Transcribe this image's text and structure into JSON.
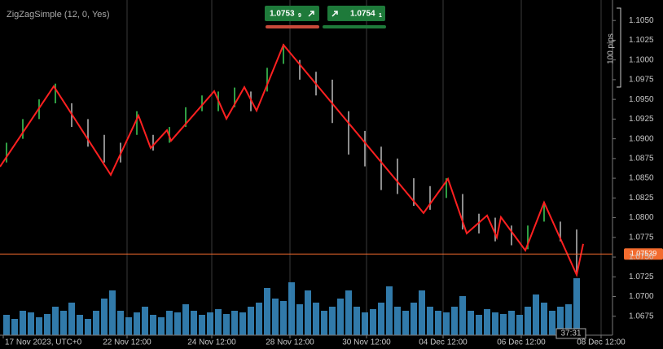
{
  "chart_data": {
    "type": "range-bars",
    "indicator": "ZigZagSimple (12, 0, Yes)",
    "xlim": [
      0,
      376
    ],
    "ylim": [
      1.0651,
      1.1076
    ],
    "xticks": [
      {
        "value": 2,
        "label": "17 Nov 2023, UTC+0"
      },
      {
        "value": 78,
        "label": "22 Nov 12:00"
      },
      {
        "value": 130,
        "label": "24 Nov 12:00"
      },
      {
        "value": 178,
        "label": "28 Nov 12:00"
      },
      {
        "value": 225,
        "label": "30 Nov 12:00"
      },
      {
        "value": 272,
        "label": "04 Dec 12:00"
      },
      {
        "value": 320,
        "label": "06 Dec 12:00"
      },
      {
        "value": 369,
        "label": "08 Dec 12:00"
      }
    ],
    "yticks": [
      {
        "value": 1.105,
        "label": "1.1050"
      },
      {
        "value": 1.1025,
        "label": "1.1025"
      },
      {
        "value": 1.1,
        "label": "1.1000"
      },
      {
        "value": 1.0975,
        "label": "1.0975"
      },
      {
        "value": 1.095,
        "label": "1.0950"
      },
      {
        "value": 1.0925,
        "label": "1.0925"
      },
      {
        "value": 1.09,
        "label": "1.0900"
      },
      {
        "value": 1.0875,
        "label": "1.0875"
      },
      {
        "value": 1.085,
        "label": "1.0850"
      },
      {
        "value": 1.0825,
        "label": "1.0825"
      },
      {
        "value": 1.08,
        "label": "1.0800"
      },
      {
        "value": 1.0775,
        "label": "1.0775"
      },
      {
        "value": 1.075,
        "label": "1.0750"
      },
      {
        "value": 1.0725,
        "label": "1.0725"
      },
      {
        "value": 1.07,
        "label": "1.0700"
      },
      {
        "value": 1.0675,
        "label": "1.0675"
      }
    ],
    "grid": true,
    "bars": {
      "x": [
        4,
        14,
        24,
        34,
        44,
        54,
        64,
        74,
        84,
        94,
        104,
        114,
        124,
        134,
        144,
        154,
        164,
        174,
        184,
        194,
        204,
        214,
        224,
        234,
        244,
        254,
        264,
        274,
        284,
        294,
        304,
        314,
        324,
        334,
        344,
        354
      ],
      "high": [
        1.0895,
        1.0925,
        1.095,
        1.097,
        1.0945,
        1.0925,
        1.0905,
        1.0895,
        1.0935,
        1.0905,
        1.0915,
        1.094,
        1.0955,
        1.096,
        1.0965,
        1.096,
        1.099,
        1.102,
        1.1,
        1.0985,
        1.0975,
        1.0935,
        1.091,
        1.089,
        1.0875,
        1.085,
        1.084,
        1.085,
        1.083,
        1.0805,
        1.08,
        1.079,
        1.079,
        1.082,
        1.0795,
        1.0785
      ],
      "low": [
        1.087,
        1.09,
        1.0925,
        1.0945,
        1.0915,
        1.089,
        1.087,
        1.087,
        1.0905,
        1.0885,
        1.0895,
        1.0915,
        1.0935,
        1.0935,
        1.094,
        1.0935,
        1.096,
        1.0995,
        1.0975,
        1.0955,
        1.092,
        1.088,
        1.0865,
        1.0835,
        1.083,
        1.0815,
        1.081,
        1.0825,
        1.0785,
        1.078,
        1.077,
        1.0765,
        1.076,
        1.0795,
        1.077,
        1.073
      ],
      "up_color": "#2f9e44",
      "down_color": "#8c8c8c"
    },
    "zigzag": {
      "x": [
        0,
        33,
        68,
        85,
        92.5,
        102.5,
        105,
        131.5,
        139,
        150,
        157.5,
        174,
        260,
        275,
        286.5,
        299,
        305,
        307.5,
        322.5,
        334,
        354,
        358
      ],
      "values": [
        1.08646,
        1.09666,
        1.08543,
        1.09295,
        1.08883,
        1.09109,
        1.08975,
        1.09604,
        1.09254,
        1.09655,
        1.09357,
        1.10191,
        1.08059,
        1.08491,
        1.07801,
        1.08028,
        1.0775,
        1.08007,
        1.07585,
        1.08193,
        1.07276,
        1.07667
      ],
      "color": "#ff2020"
    },
    "volume": {
      "x": [
        4,
        9,
        14,
        19,
        24,
        29,
        34,
        39,
        44,
        49,
        54,
        59,
        64,
        69,
        74,
        79,
        84,
        89,
        94,
        99,
        104,
        109,
        114,
        119,
        124,
        129,
        134,
        139,
        144,
        149,
        154,
        159,
        164,
        169,
        174,
        179,
        184,
        189,
        194,
        199,
        204,
        209,
        214,
        219,
        224,
        229,
        234,
        239,
        244,
        249,
        254,
        259,
        264,
        269,
        274,
        279,
        284,
        289,
        294,
        299,
        304,
        309,
        314,
        319,
        324,
        329,
        334,
        339,
        344,
        349,
        354
      ],
      "values": [
        25,
        20,
        30,
        28,
        22,
        26,
        35,
        30,
        40,
        25,
        20,
        30,
        45,
        55,
        30,
        22,
        28,
        35,
        25,
        22,
        30,
        28,
        38,
        30,
        25,
        28,
        32,
        26,
        30,
        28,
        35,
        40,
        58,
        45,
        42,
        65,
        38,
        55,
        40,
        30,
        35,
        45,
        55,
        35,
        28,
        32,
        40,
        60,
        35,
        30,
        40,
        55,
        35,
        30,
        28,
        35,
        48,
        30,
        25,
        32,
        28,
        26,
        30,
        25,
        35,
        50,
        40,
        30,
        35,
        38,
        70
      ],
      "vlim": [
        0,
        100
      ],
      "color": "#3a8fc8"
    },
    "last_price": {
      "value": 1.07539,
      "color": "#f26b2e"
    },
    "sell": {
      "price": "1.0753",
      "pip": "9"
    },
    "buy": {
      "price": "1.0754",
      "pip": "1"
    },
    "scale_note": "100 pips",
    "countdown": "37:31"
  }
}
